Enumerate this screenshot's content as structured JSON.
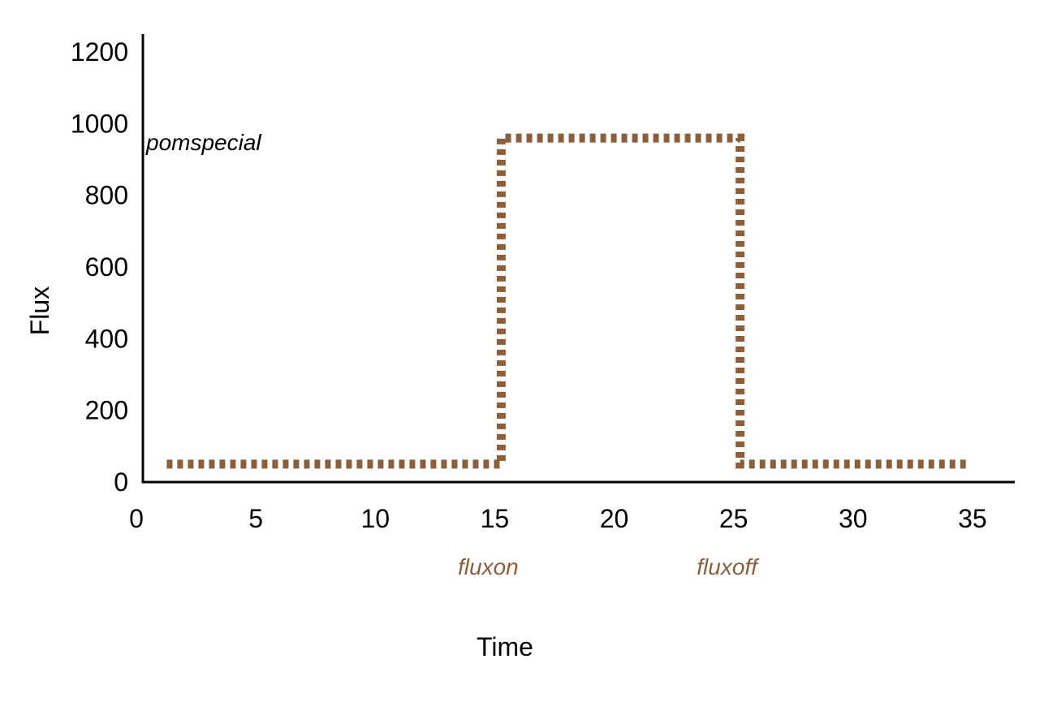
{
  "chart_data": {
    "type": "line",
    "xlabel": "Time",
    "ylabel": "Flux",
    "xlim": [
      0,
      36.5
    ],
    "ylim": [
      0,
      1250
    ],
    "xticks": [
      0,
      5,
      10,
      15,
      20,
      25,
      30,
      35
    ],
    "yticks": [
      0,
      200,
      400,
      600,
      800,
      1000,
      1200
    ],
    "grid": false,
    "series": [
      {
        "style": "dotted",
        "color": "#8b5e3c",
        "x": [
          1,
          15,
          15,
          25,
          25,
          34.5
        ],
        "y": [
          50,
          50,
          960,
          960,
          50,
          50
        ]
      }
    ],
    "annotations": [
      {
        "text": "pomspecial",
        "x": 0.2,
        "y": 920,
        "color": "#000000"
      },
      {
        "text": "fluxon",
        "x": 15,
        "position": "below-x-axis",
        "color": "#8b5e3c"
      },
      {
        "text": "fluxoff",
        "x": 25,
        "position": "below-x-axis",
        "color": "#8b5e3c"
      }
    ]
  }
}
